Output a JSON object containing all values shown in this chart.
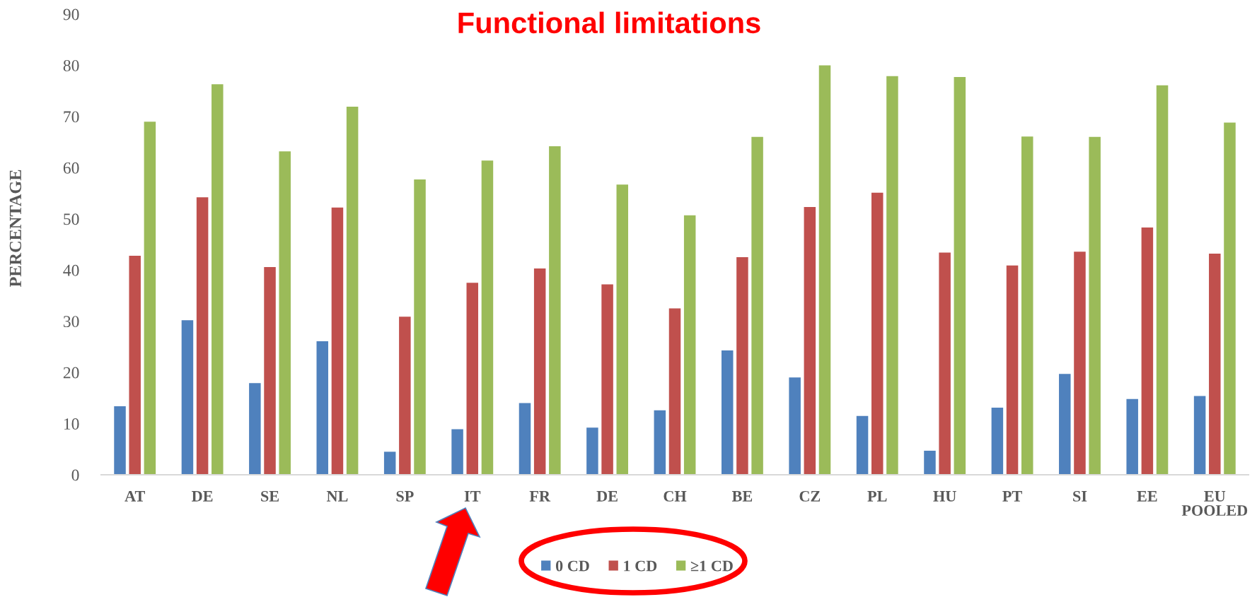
{
  "chart_data": {
    "type": "bar",
    "title": "Functional limitations",
    "ylabel": "PERCENTAGE",
    "categories": [
      "AT",
      "DE",
      "SE",
      "NL",
      "SP",
      "IT",
      "FR",
      "DE",
      "CH",
      "BE",
      "CZ",
      "PL",
      "HU",
      "PT",
      "SI",
      "EE",
      "EU\nPOOLED"
    ],
    "series": [
      {
        "name": "0 CD",
        "color": "#4f81bd",
        "values": [
          13.4,
          30.2,
          17.9,
          26.1,
          4.5,
          8.9,
          14.0,
          9.2,
          12.6,
          24.3,
          19.0,
          11.5,
          4.7,
          13.1,
          19.7,
          14.8,
          15.4
        ]
      },
      {
        "name": "1 CD",
        "color": "#c0504d",
        "values": [
          42.8,
          54.2,
          40.6,
          52.2,
          30.9,
          37.5,
          40.3,
          37.2,
          32.5,
          42.5,
          52.3,
          55.1,
          43.4,
          40.9,
          43.6,
          48.3,
          43.2
        ]
      },
      {
        "name": "≥1 CD",
        "color": "#9bbb59",
        "values": [
          69.0,
          76.3,
          63.2,
          71.9,
          57.7,
          61.4,
          64.2,
          56.7,
          50.7,
          66.0,
          80.0,
          77.9,
          77.7,
          66.1,
          66.0,
          76.1,
          68.8
        ]
      }
    ],
    "ylim": [
      0,
      90
    ],
    "yticks": [
      0,
      10,
      20,
      30,
      40,
      50,
      60,
      70,
      80,
      90
    ],
    "grid": false,
    "legend": "bottom"
  }
}
